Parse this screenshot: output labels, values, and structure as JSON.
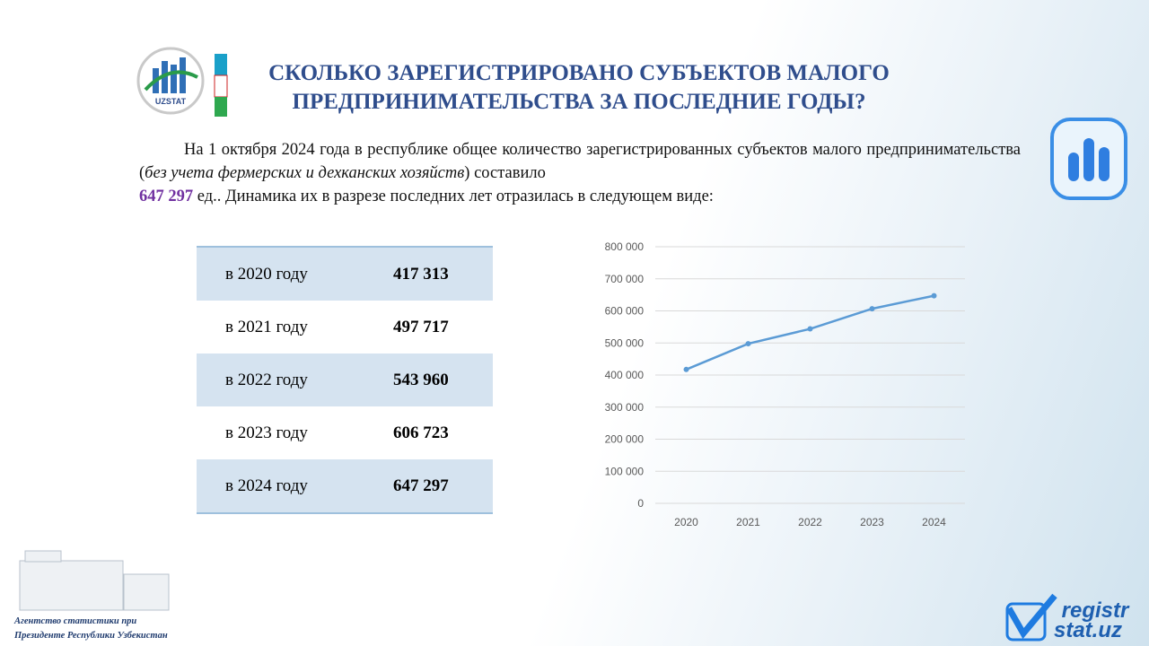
{
  "header": {
    "title": [
      "СКОЛЬКО ЗАРЕГИСТРИРОВАНО СУБЪЕКТОВ МАЛОГО",
      "ПРЕДПРИНИМАТЕЛЬСТВА ЗА ПОСЛЕДНИЕ ГОДЫ?"
    ],
    "logo_text": "UZSTAT"
  },
  "intro": {
    "part1": "На 1 октября 2024 года в республике общее количество зарегистрированных субъектов малого предпринимательства (",
    "italic": "без учета фермерских и дехканских хозяйств",
    "part2": ") составило ",
    "highlight": "647 297",
    "part3": " ед.. Динамика их в разрезе последних лет отразилась в следующем виде:"
  },
  "table": {
    "rows": [
      [
        "в 2020 году",
        "417 313"
      ],
      [
        "в 2021 году",
        "497 717"
      ],
      [
        "в 2022 году",
        "543 960"
      ],
      [
        "в 2023 году",
        "606 723"
      ],
      [
        "в 2024 году",
        "647 297"
      ]
    ]
  },
  "chart_data": {
    "type": "line",
    "categories": [
      "2020",
      "2021",
      "2022",
      "2023",
      "2024"
    ],
    "values": [
      417313,
      497717,
      543960,
      606723,
      647297
    ],
    "color": "#5b9bd5",
    "ylim": [
      0,
      800000
    ],
    "yticks": [
      0,
      {
        "value": 100000,
        "label": "100 000"
      },
      {
        "value": 200000,
        "label": "200 000"
      },
      {
        "value": 300000,
        "label": "300 000"
      },
      {
        "value": 400000,
        "label": "400 000"
      },
      {
        "value": 500000,
        "label": "500 000"
      },
      {
        "value": 600000,
        "label": "600 000"
      },
      {
        "value": 700000,
        "label": "700 000"
      },
      {
        "value": 800000,
        "label": "800 000"
      }
    ],
    "grid": true
  },
  "footer": {
    "agency": [
      "Агентство статистики при",
      "Президенте Республики Узбекистан"
    ],
    "brand": [
      "registr",
      "stat.uz"
    ]
  }
}
